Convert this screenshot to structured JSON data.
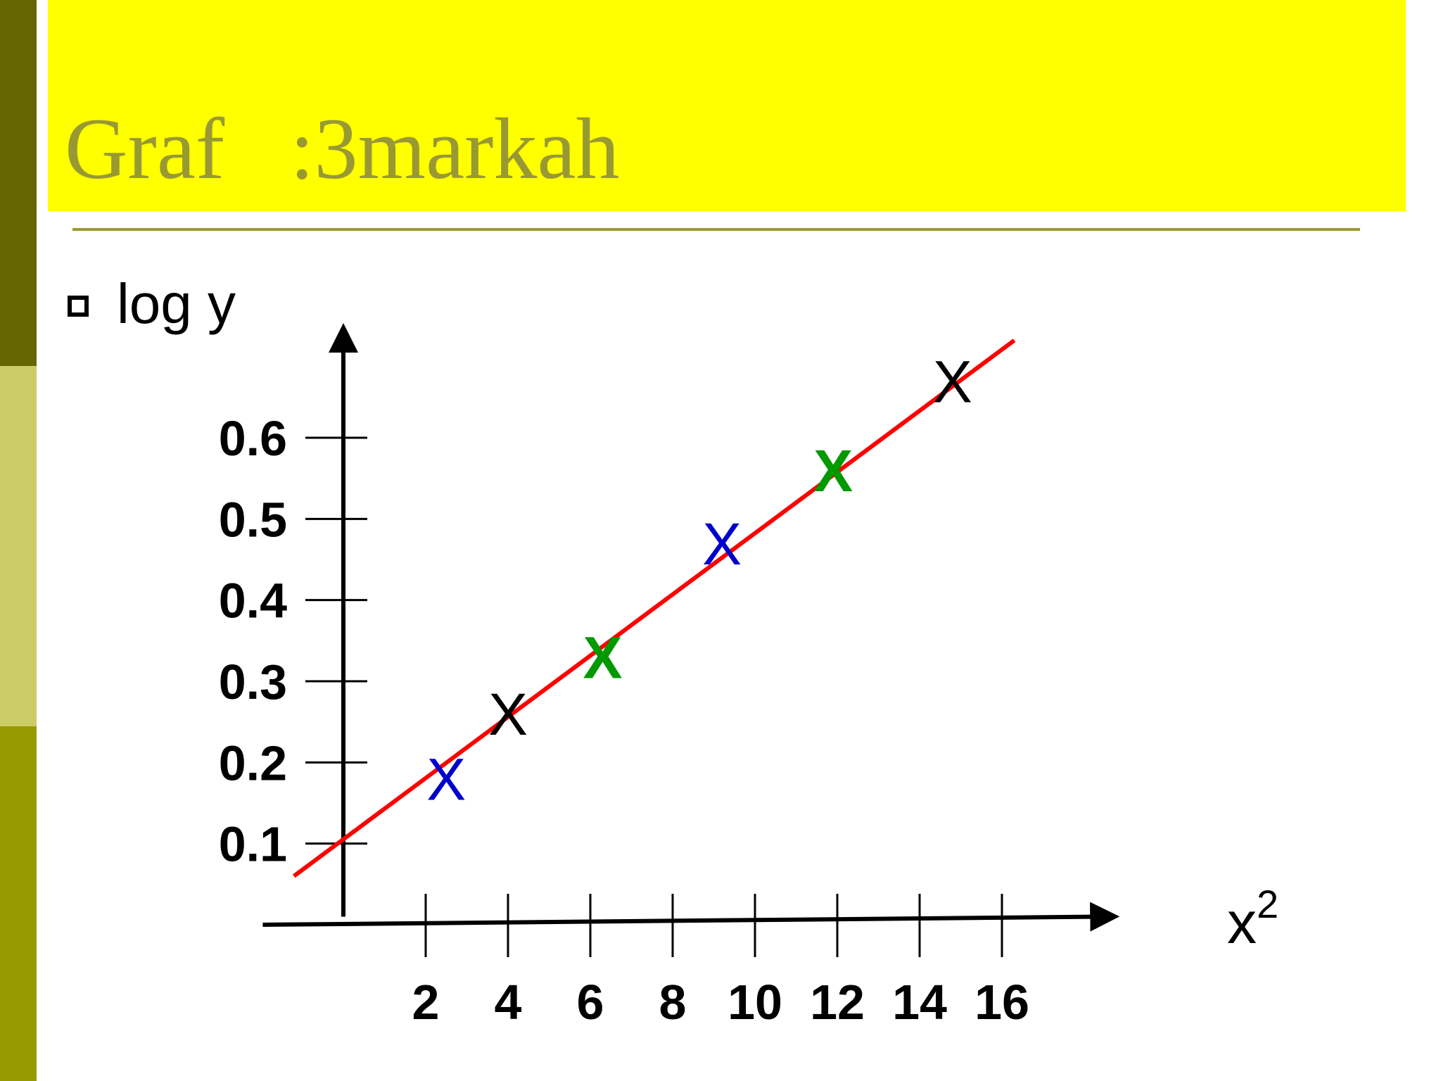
{
  "slide": {
    "title": "Graf   :3markah",
    "bullet": "log y"
  },
  "colors": {
    "stripe_top": "#666600",
    "stripe_mid": "#cccc66",
    "stripe_bottom": "#999900",
    "title_band": "#ffff00",
    "title_text": "#999933",
    "best_fit_line": "#ff0000",
    "marker_black": "#000000",
    "marker_blue": "#0000cc",
    "marker_green": "#009900"
  },
  "chart_data": {
    "type": "scatter",
    "ylabel": "log y",
    "xlabel": "x",
    "xlabel_superscript": "2",
    "y_ticks": [
      0.1,
      0.2,
      0.3,
      0.4,
      0.5,
      0.6
    ],
    "y_tick_labels": [
      "0.1",
      "0.2",
      "0.3",
      "0.4",
      "0.5",
      "0.6"
    ],
    "x_ticks": [
      2,
      4,
      6,
      8,
      10,
      12,
      14,
      16
    ],
    "x_tick_labels": [
      "2",
      "4",
      "6",
      "8",
      "10",
      "12",
      "14",
      "16"
    ],
    "marker_symbol": "X",
    "points": [
      {
        "x": 2.5,
        "y": 0.18,
        "color": "blue"
      },
      {
        "x": 4.0,
        "y": 0.26,
        "color": "black"
      },
      {
        "x": 6.3,
        "y": 0.33,
        "color": "green"
      },
      {
        "x": 9.2,
        "y": 0.47,
        "color": "blue"
      },
      {
        "x": 11.9,
        "y": 0.56,
        "color": "green"
      },
      {
        "x": 14.8,
        "y": 0.67,
        "color": "black"
      }
    ],
    "best_fit_line": {
      "x1": -1.2,
      "y1": 0.06,
      "x2": 16.3,
      "y2": 0.72
    },
    "xlim": [
      -2.3,
      19.2
    ],
    "ylim": [
      -0.08,
      0.72
    ],
    "grid": false
  }
}
